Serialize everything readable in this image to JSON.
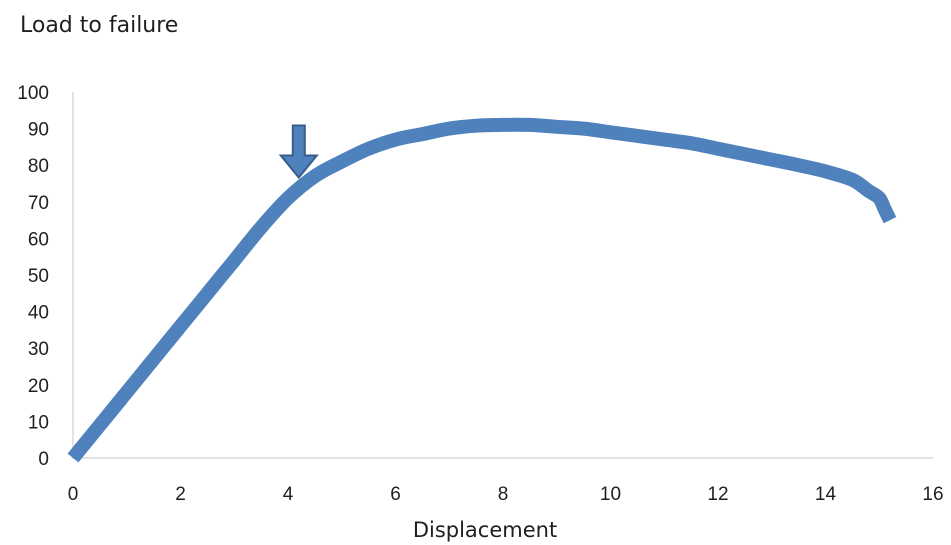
{
  "chart_data": {
    "type": "line",
    "title": "Load to failure",
    "xlabel": "Displacement",
    "ylabel": "",
    "xlim": [
      0,
      16
    ],
    "ylim": [
      0,
      100
    ],
    "x_ticks": [
      "0",
      "2",
      "4",
      "6",
      "8",
      "10",
      "12",
      "14",
      "16"
    ],
    "y_ticks": [
      "0",
      "10",
      "20",
      "30",
      "40",
      "50",
      "60",
      "70",
      "80",
      "90",
      "100"
    ],
    "grid": false,
    "legend": "none",
    "line_color": "#4f81bd",
    "marker_color": "#4f81bd",
    "annotations": [
      {
        "type": "arrow-down",
        "x": 4.2,
        "y": 75
      }
    ],
    "series": [
      {
        "x": [
          0,
          0.5,
          1,
          1.5,
          2,
          2.5,
          3,
          3.5,
          4,
          4.5,
          5,
          5.5,
          6,
          6.5,
          7,
          7.5,
          8,
          8.5,
          9,
          9.5,
          10,
          10.5,
          11,
          11.5,
          12,
          12.5,
          13,
          13.5,
          14,
          14.5,
          14.8,
          15,
          15.1,
          15.2
        ],
        "y": [
          0,
          9,
          18,
          27,
          36,
          45,
          54,
          63,
          71,
          77,
          81,
          84.5,
          87,
          88.5,
          90,
          90.8,
          91,
          91,
          90.5,
          90,
          89,
          88,
          87,
          86,
          84.5,
          83,
          81.5,
          80,
          78.3,
          76,
          73,
          71,
          68,
          65
        ]
      }
    ]
  }
}
